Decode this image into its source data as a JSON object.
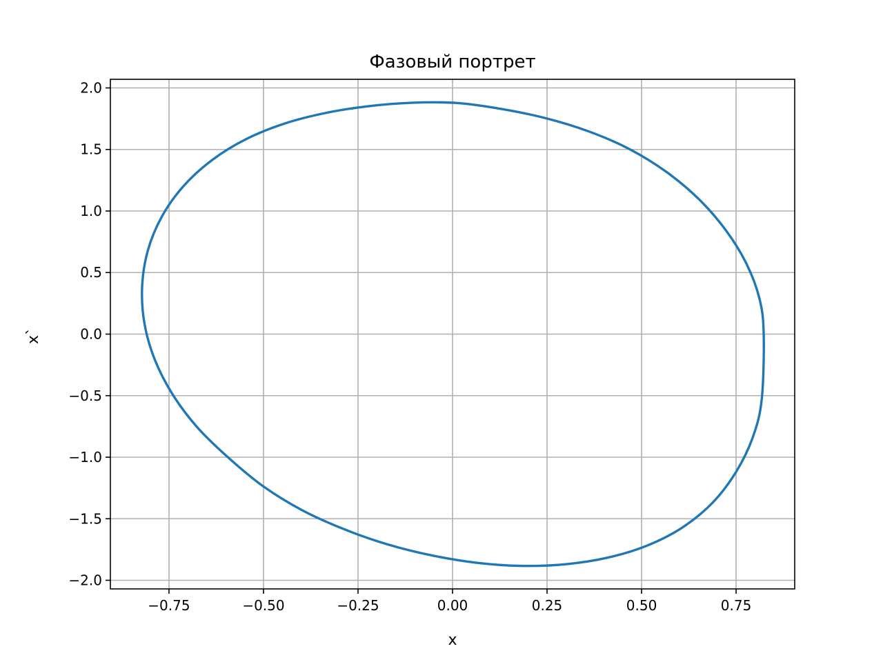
{
  "chart_data": {
    "type": "line",
    "title": "Фазовый портрет",
    "xlabel": "x",
    "ylabel": "x`",
    "xlim": [
      -0.905,
      0.905
    ],
    "ylim": [
      -2.07,
      2.07
    ],
    "grid": true,
    "x_ticks": [
      -0.75,
      -0.5,
      -0.25,
      0.0,
      0.25,
      0.5,
      0.75
    ],
    "x_tick_labels": [
      "−0.75",
      "−0.50",
      "−0.25",
      "0.00",
      "0.25",
      "0.50",
      "0.75"
    ],
    "y_ticks": [
      2.0,
      1.5,
      1.0,
      0.5,
      0.0,
      -0.5,
      -1.0,
      -1.5,
      -2.0
    ],
    "y_tick_labels": [
      "2.0",
      "1.5",
      "1.0",
      "0.5",
      "0.0",
      "−0.5",
      "−1.0",
      "−1.5",
      "−2.0"
    ],
    "series": [
      {
        "color": "#1f77b4",
        "x": [
          0.823,
          0.812,
          0.778,
          0.724,
          0.653,
          0.566,
          0.468,
          0.361,
          0.248,
          0.131,
          0.014,
          -0.104,
          -0.221,
          -0.335,
          -0.444,
          -0.546,
          -0.636,
          -0.712,
          -0.769,
          -0.806,
          -0.821,
          -0.815,
          -0.788,
          -0.741,
          -0.676,
          -0.595,
          -0.501,
          -0.397,
          -0.286,
          -0.17,
          -0.053,
          0.065,
          0.182,
          0.298,
          0.409,
          0.513,
          0.607,
          0.688,
          0.751,
          0.795,
          0.818,
          0.823
        ],
        "y": [
          0.0,
          0.286,
          0.568,
          0.839,
          1.092,
          1.317,
          1.503,
          1.646,
          1.753,
          1.828,
          1.877,
          1.88,
          1.852,
          1.797,
          1.711,
          1.584,
          1.414,
          1.201,
          0.954,
          0.678,
          0.386,
          0.089,
          -0.204,
          -0.487,
          -0.754,
          -0.998,
          -1.236,
          -1.432,
          -1.586,
          -1.71,
          -1.799,
          -1.858,
          -1.883,
          -1.87,
          -1.817,
          -1.72,
          -1.573,
          -1.369,
          -1.114,
          -0.831,
          -0.524,
          0.0
        ]
      }
    ]
  }
}
